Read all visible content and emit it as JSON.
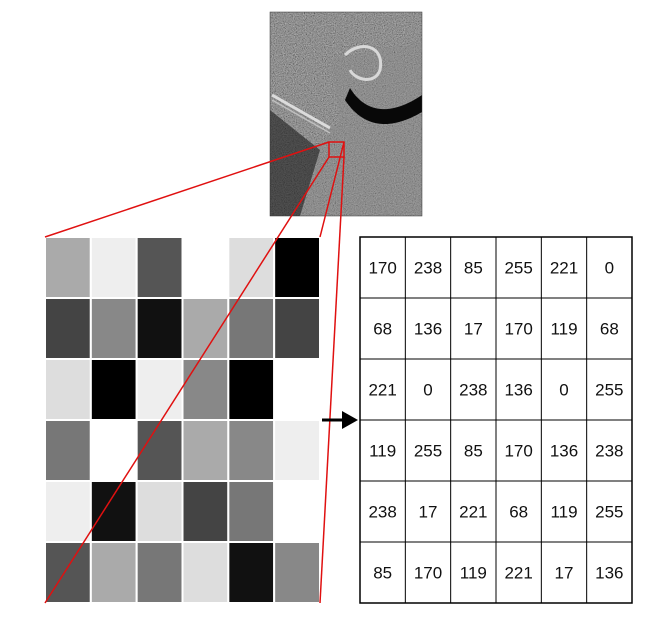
{
  "figure": {
    "photo_icon": "aerial-satellite-photo",
    "pixel_grid": {
      "rows": 6,
      "cols": 6,
      "values": [
        [
          170,
          238,
          85,
          255,
          221,
          0
        ],
        [
          68,
          136,
          17,
          170,
          119,
          68
        ],
        [
          221,
          0,
          238,
          136,
          0,
          255
        ],
        [
          119,
          255,
          85,
          170,
          136,
          238
        ],
        [
          238,
          17,
          221,
          68,
          119,
          255
        ],
        [
          85,
          170,
          119,
          221,
          17,
          136
        ]
      ]
    },
    "arrow_icon": "arrow-right-icon",
    "zoom_line_color": "#e01010",
    "grid_border_color": "#000000"
  }
}
